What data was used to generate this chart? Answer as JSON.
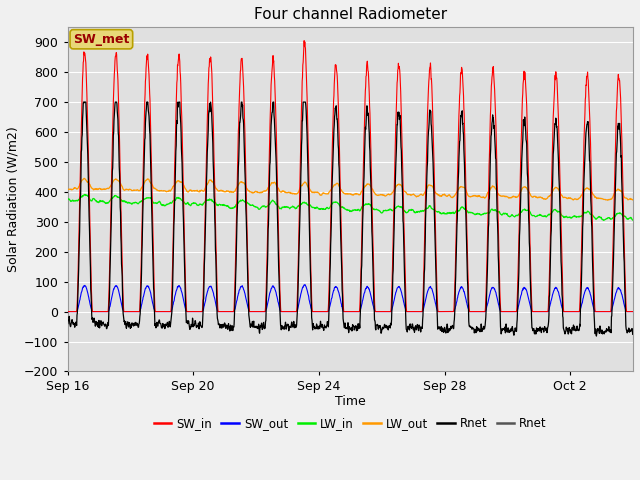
{
  "title": "Four channel Radiometer",
  "xlabel": "Time",
  "ylabel": "Solar Radiation (W/m2)",
  "ylim": [
    -200,
    950
  ],
  "yticks": [
    -200,
    -100,
    0,
    100,
    200,
    300,
    400,
    500,
    600,
    700,
    800,
    900
  ],
  "fig_bg": "#f0f0f0",
  "plot_bg": "#e0e0e0",
  "grid_color": "#ffffff",
  "annotation_text": "SW_met",
  "annotation_bg": "#e8d878",
  "annotation_border": "#b8a000",
  "annotation_text_color": "#990000",
  "colors": {
    "SW_in": "#ff0000",
    "SW_out": "#0000ff",
    "LW_in": "#00ee00",
    "LW_out": "#ff9900",
    "Rnet_black": "#000000",
    "Rnet_dark": "#555555"
  },
  "legend_labels": [
    "SW_in",
    "SW_out",
    "LW_in",
    "LW_out",
    "Rnet",
    "Rnet"
  ],
  "tick_labels": [
    "Sep 16",
    "Sep 20",
    "Sep 24",
    "Sep 28",
    "Oct 2"
  ],
  "n_days": 18,
  "dt": 0.25
}
